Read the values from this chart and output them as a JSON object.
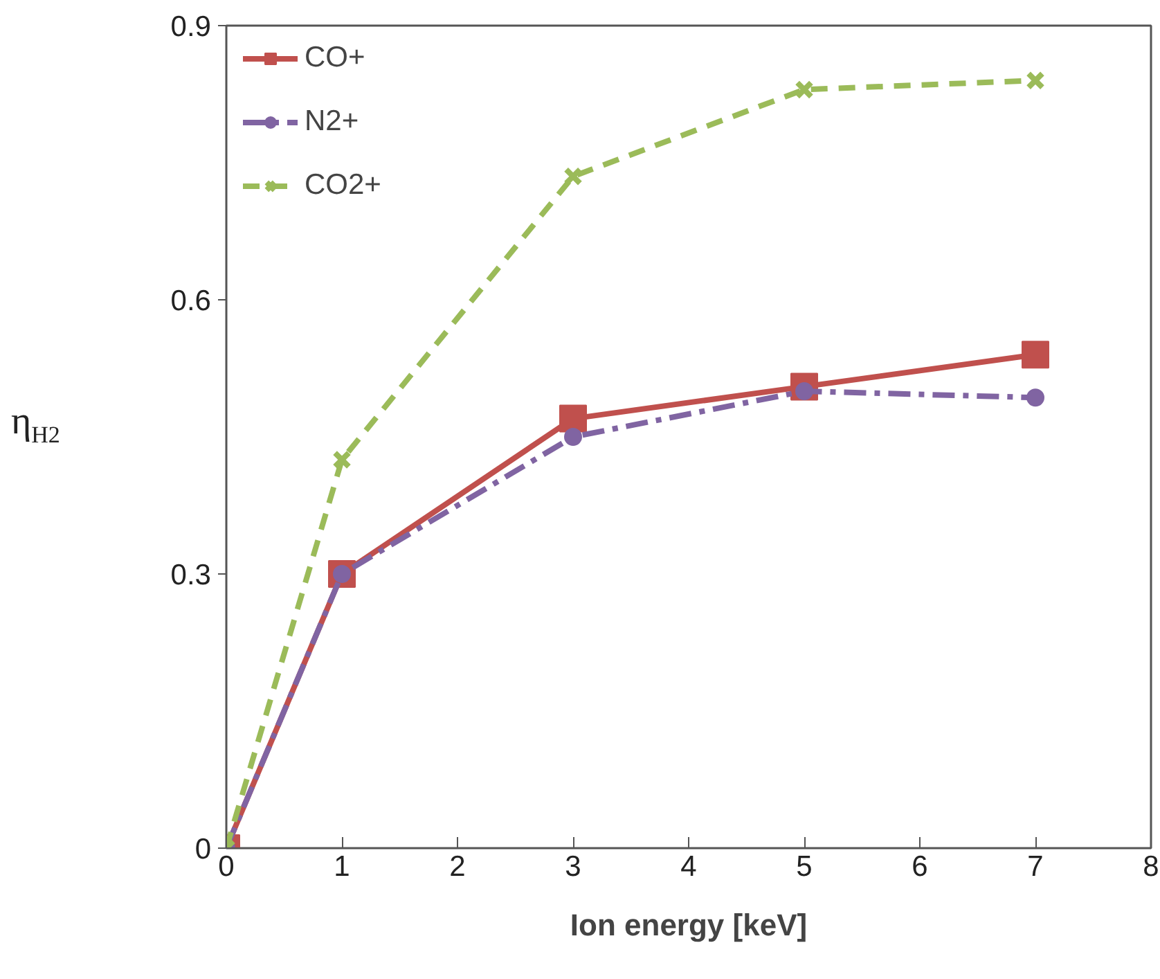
{
  "chart_data": {
    "type": "line",
    "xlabel": "Ion energy [keV]",
    "ylabel": "η$_{H2}$",
    "x": [
      0,
      1,
      3,
      5,
      7
    ],
    "xlim": [
      0,
      8
    ],
    "xticks": [
      0,
      1,
      2,
      3,
      4,
      5,
      6,
      7,
      8
    ],
    "ylim": [
      0,
      0.9
    ],
    "yticks": [
      0,
      0.3,
      0.6,
      0.9
    ],
    "grid": false,
    "legend": "top left",
    "series": [
      {
        "name": "CO+",
        "color": "#c0504d",
        "marker": "square",
        "line_style": "solid",
        "values": [
          0,
          0.3,
          0.47,
          0.505,
          0.54
        ]
      },
      {
        "name": "N2+",
        "color": "#8064a2",
        "marker": "circle",
        "line_style": "dashdot",
        "values": [
          0,
          0.3,
          0.45,
          0.5,
          0.493
        ]
      },
      {
        "name": "CO2+",
        "color": "#9bbb59",
        "marker": "cross",
        "line_style": "dashed",
        "values": [
          0,
          0.425,
          0.735,
          0.83,
          0.84
        ]
      }
    ]
  }
}
